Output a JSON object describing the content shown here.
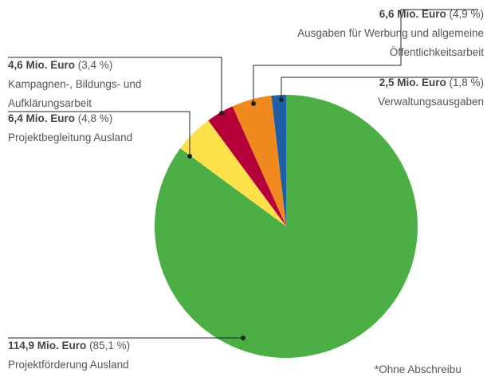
{
  "chart_data": {
    "type": "pie",
    "categories": [
      "Verwaltungsausgaben",
      "Ausgaben für Werbung und allgemeine Öffentlichkeitsarbeit",
      "Kampagnen-, Bildungs- und Aufklärungsarbeit",
      "Projektbegleitung Ausland",
      "Projektförderung Ausland"
    ],
    "category_lines": [
      [
        "Verwaltungsausgaben"
      ],
      [
        "Ausgaben für Werbung und allgemeine",
        "Öffentlichkeitsarbeit"
      ],
      [
        "Kampagnen-, Bildungs- und",
        "Aufklärungsarbeit"
      ],
      [
        "Projektbegleitung Ausland"
      ],
      [
        "Projektförderung Ausland"
      ]
    ],
    "amounts": [
      "2,5 Mio. Euro",
      "6,6 Mio. Euro",
      "4,6 Mio. Euro",
      "6,4 Mio. Euro",
      "114,9 Mio. Euro"
    ],
    "values": [
      1.8,
      4.9,
      3.4,
      4.8,
      85.1
    ],
    "value_labels": [
      "(1,8 %)",
      "(4,9 %)",
      "(3,4 %)",
      "(4,8 %)",
      "(85,1 %)"
    ],
    "colors": [
      "#1f5fa8",
      "#f08a1e",
      "#b5003a",
      "#fde04a",
      "#4caf45"
    ],
    "direction": "counterclockwise",
    "footnote": "*Ohne Abschreibu"
  }
}
